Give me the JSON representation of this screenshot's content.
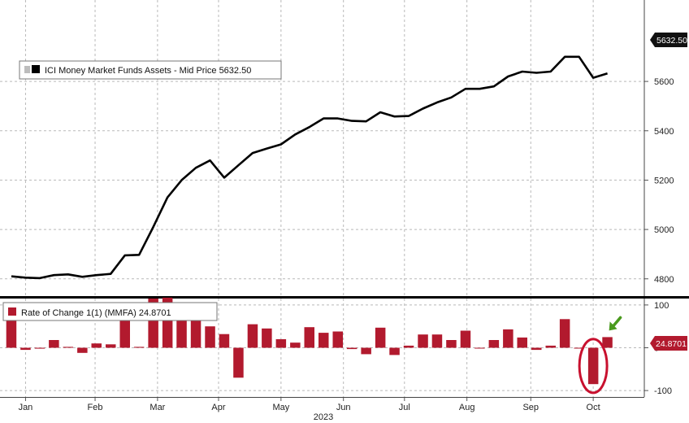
{
  "chart_data": [
    {
      "type": "line",
      "legend": "ICI Money Market Funds Assets - Mid Price 5632.50",
      "last_value_label": "5632.50",
      "color": "#000000",
      "ylim": [
        4730,
        5930
      ],
      "y_ticks": [
        4800,
        5000,
        5200,
        5400,
        5600
      ],
      "y_tick_labels": [
        "4800",
        "5000",
        "5200",
        "5400",
        "5600"
      ],
      "x": [
        1,
        2,
        3,
        4,
        5,
        6,
        7,
        8,
        9,
        10,
        11,
        12,
        13,
        14,
        15,
        16,
        17,
        18,
        19,
        20,
        21,
        22,
        23,
        24,
        25,
        26,
        27,
        28,
        29,
        30,
        31,
        32,
        33,
        34,
        35,
        36,
        37,
        38,
        39,
        40,
        41,
        42,
        43
      ],
      "values": [
        4810,
        4805,
        4803,
        4815,
        4818,
        4808,
        4815,
        4820,
        4895,
        4897,
        5010,
        5130,
        5200,
        5250,
        5280,
        5210,
        5260,
        5310,
        5328,
        5345,
        5385,
        5415,
        5450,
        5450,
        5440,
        5438,
        5475,
        5458,
        5460,
        5490,
        5515,
        5535,
        5570,
        5570,
        5580,
        5620,
        5640,
        5635,
        5640,
        5700,
        5700,
        5615,
        5632.5
      ]
    },
    {
      "type": "bar",
      "legend": "Rate of Change 1(1) (MMFA) 24.8701",
      "last_value_label": "24.8701",
      "color": "#b21a2e",
      "ylim": [
        -115,
        115
      ],
      "y_ticks": [
        100,
        0,
        -100
      ],
      "y_tick_labels": [
        "100",
        "0",
        "-100"
      ],
      "x": [
        1,
        2,
        3,
        4,
        5,
        6,
        7,
        8,
        9,
        10,
        11,
        12,
        13,
        14,
        15,
        16,
        17,
        18,
        19,
        20,
        21,
        22,
        23,
        24,
        25,
        26,
        27,
        28,
        29,
        30,
        31,
        32,
        33,
        34,
        35,
        36,
        37,
        38,
        39,
        40,
        41,
        42,
        43
      ],
      "values": [
        82,
        -5,
        -2,
        18,
        2,
        -12,
        10,
        8,
        84,
        2,
        115,
        117,
        75,
        67,
        50,
        32,
        -70,
        55,
        45,
        20,
        12,
        48,
        35,
        38,
        -3,
        -15,
        47,
        -17,
        5,
        31,
        31,
        18,
        40,
        0,
        18,
        43,
        24,
        -5,
        5,
        67,
        0,
        -85,
        24.87
      ]
    }
  ],
  "x_axis": {
    "tick_labels": [
      "Jan",
      "Feb",
      "Mar",
      "Apr",
      "May",
      "Jun",
      "Jul",
      "Aug",
      "Sep",
      "Oct"
    ],
    "tick_positions": [
      2.0,
      6.9,
      11.3,
      15.6,
      20.0,
      24.4,
      28.7,
      33.1,
      37.6,
      42.0
    ],
    "year_label": "2023"
  },
  "annotations": {
    "circle_color": "#c8102e",
    "arrow_color": "#4a9a1e"
  }
}
